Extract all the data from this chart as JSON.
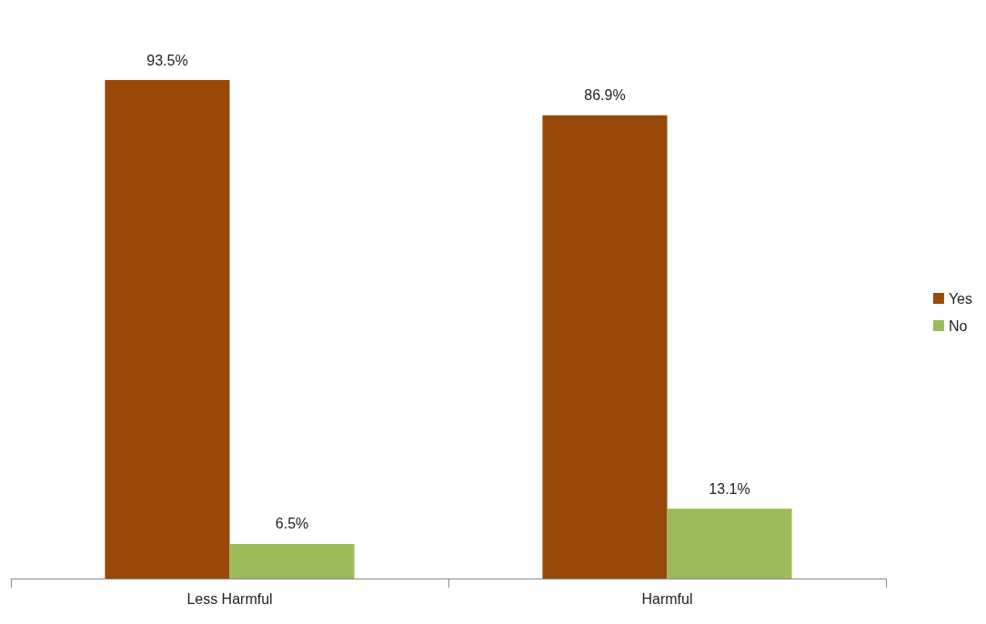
{
  "chart_data": {
    "type": "bar",
    "categories": [
      "Less Harmful",
      "Harmful"
    ],
    "series": [
      {
        "name": "Yes",
        "color": "#984807",
        "values": [
          93.5,
          86.9
        ],
        "value_labels": [
          "93.5%",
          "86.9%"
        ]
      },
      {
        "name": "No",
        "color": "#9bbb59",
        "values": [
          6.5,
          13.1
        ],
        "value_labels": [
          "6.5%",
          "13.1%"
        ]
      }
    ],
    "legend": "right"
  }
}
